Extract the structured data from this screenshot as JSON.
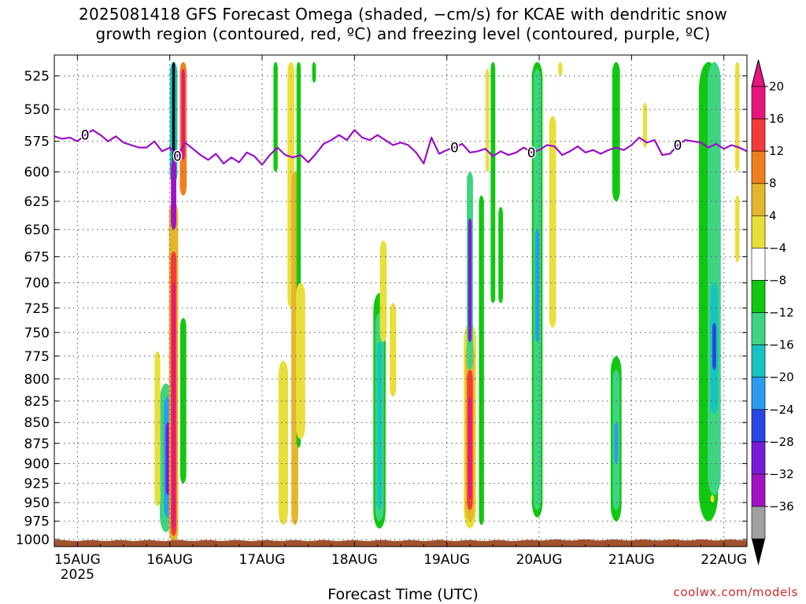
{
  "title": {
    "line1": "2025081418 GFS Forecast Omega (shaded, −cm/s) for KCAE with dendritic snow",
    "line2": "growth region (contoured, red, ºC) and freezing level (contoured, purple, ºC)"
  },
  "credit": "coolwx.com/models",
  "chart_data": {
    "type": "heatmap",
    "title": "2025081418 GFS Forecast Omega (shaded, −cm/s) for KCAE with dendritic snow growth region (contoured, red, ºC) and freezing level (contoured, purple, ºC)",
    "xlabel": "Forecast Time (UTC)",
    "ylabel": "",
    "x_ticks": [
      "15AUG",
      "16AUG",
      "17AUG",
      "18AUG",
      "19AUG",
      "20AUG",
      "21AUG",
      "22AUG"
    ],
    "x_tick_sublabel": "2025",
    "x_tick_hours": [
      0,
      24,
      48,
      72,
      96,
      120,
      144,
      168
    ],
    "xlim_hours": [
      -6,
      174
    ],
    "y_ticks": [
      525,
      550,
      575,
      600,
      625,
      650,
      675,
      700,
      725,
      750,
      775,
      800,
      825,
      850,
      875,
      900,
      925,
      950,
      975,
      1000
    ],
    "ylim": [
      510,
      1010
    ],
    "y_scale": "log",
    "grid": true,
    "colorbar": {
      "labels": [
        "20",
        "16",
        "12",
        "8",
        "4",
        "−4",
        "−8",
        "−12",
        "−16",
        "−20",
        "−24",
        "−28",
        "−32",
        "−36"
      ],
      "colors": [
        "#e8157e",
        "#f53a3a",
        "#f07e1e",
        "#e5b62b",
        "#e9df3a",
        "#ffffff",
        "#10c810",
        "#3dd482",
        "#17c2c2",
        "#2b9cf0",
        "#2a46e3",
        "#7a1ad9",
        "#a012c4",
        "#a0a0a0"
      ],
      "top_arrow_color": "#e8157e",
      "bottom_arrow_color": "#000000"
    },
    "freezing_level": {
      "label": "0",
      "color": "#9a0fc8",
      "hours": [
        -6,
        -4,
        -2,
        0,
        2,
        4,
        6,
        8,
        10,
        12,
        14,
        16,
        18,
        20,
        22,
        24,
        26,
        28,
        30,
        32,
        34,
        36,
        38,
        40,
        42,
        44,
        46,
        48,
        50,
        52,
        54,
        56,
        58,
        60,
        62,
        64,
        66,
        68,
        70,
        72,
        74,
        76,
        78,
        80,
        82,
        84,
        86,
        88,
        90,
        92,
        94,
        96,
        98,
        100,
        102,
        104,
        106,
        108,
        110,
        112,
        114,
        116,
        118,
        120,
        122,
        124,
        126,
        128,
        130,
        132,
        134,
        136,
        138,
        140,
        142,
        144,
        146,
        148,
        150,
        152,
        154,
        156,
        158,
        160,
        162,
        164,
        166,
        168,
        170,
        172,
        174
      ],
      "pressure": [
        571,
        573,
        572,
        575,
        570,
        566,
        570,
        575,
        571,
        576,
        578,
        580,
        580,
        575,
        583,
        580,
        587,
        576,
        581,
        586,
        590,
        585,
        593,
        588,
        592,
        584,
        587,
        594,
        586,
        580,
        586,
        588,
        586,
        592,
        585,
        577,
        574,
        570,
        574,
        566,
        572,
        574,
        570,
        574,
        578,
        576,
        578,
        584,
        593,
        572,
        585,
        582,
        580,
        577,
        584,
        583,
        581,
        587,
        583,
        586,
        584,
        580,
        584,
        582,
        578,
        579,
        586,
        583,
        579,
        584,
        582,
        585,
        582,
        580,
        582,
        578,
        572,
        576,
        574,
        586,
        585,
        578,
        574,
        575,
        576,
        580,
        577,
        581,
        578,
        580,
        583
      ]
    },
    "omega_features": [
      {
        "h": 23.0,
        "pt": 805,
        "pb": 990,
        "w": 3.2,
        "color": "#3dd482"
      },
      {
        "h": 23.5,
        "pt": 820,
        "pb": 970,
        "w": 2.0,
        "color": "#2b9cf0"
      },
      {
        "h": 23.5,
        "pt": 850,
        "pb": 940,
        "w": 1.1,
        "color": "#7a1ad9"
      },
      {
        "h": 20.8,
        "pt": 770,
        "pb": 955,
        "w": 1.5,
        "color": "#e9df3a"
      },
      {
        "h": 25.0,
        "pt": 625,
        "pb": 1005,
        "w": 2.4,
        "color": "#e5b62b"
      },
      {
        "h": 25.0,
        "pt": 670,
        "pb": 995,
        "w": 1.5,
        "color": "#f53a3a"
      },
      {
        "h": 25.0,
        "pt": 700,
        "pb": 985,
        "w": 0.9,
        "color": "#e8157e"
      },
      {
        "h": 27.5,
        "pt": 735,
        "pb": 925,
        "w": 1.6,
        "color": "#10c810"
      },
      {
        "h": 25.0,
        "pt": 515,
        "pb": 610,
        "w": 2.0,
        "color": "#17c2c2"
      },
      {
        "h": 25.0,
        "pt": 515,
        "pb": 600,
        "w": 0.7,
        "color": "#000000"
      },
      {
        "h": 25.0,
        "pt": 590,
        "pb": 650,
        "w": 1.4,
        "color": "#a012c4"
      },
      {
        "h": 27.5,
        "pt": 515,
        "pb": 620,
        "w": 1.8,
        "color": "#f07e1e"
      },
      {
        "h": 27.5,
        "pt": 520,
        "pb": 590,
        "w": 0.9,
        "color": "#e8157e"
      },
      {
        "h": 51.5,
        "pt": 515,
        "pb": 600,
        "w": 1.1,
        "color": "#10c810"
      },
      {
        "h": 55.5,
        "pt": 515,
        "pb": 725,
        "w": 1.8,
        "color": "#e9df3a"
      },
      {
        "h": 56.5,
        "pt": 600,
        "pb": 980,
        "w": 1.8,
        "color": "#e5b62b"
      },
      {
        "h": 57.5,
        "pt": 515,
        "pb": 880,
        "w": 1.1,
        "color": "#10c810"
      },
      {
        "h": 58.0,
        "pt": 700,
        "pb": 870,
        "w": 2.4,
        "color": "#e9df3a"
      },
      {
        "h": 61.5,
        "pt": 515,
        "pb": 530,
        "w": 1.0,
        "color": "#10c810"
      },
      {
        "h": 53.5,
        "pt": 780,
        "pb": 980,
        "w": 2.5,
        "color": "#e9df3a"
      },
      {
        "h": 78.5,
        "pt": 710,
        "pb": 985,
        "w": 3.2,
        "color": "#10c810"
      },
      {
        "h": 78.5,
        "pt": 730,
        "pb": 975,
        "w": 2.2,
        "color": "#3dd482"
      },
      {
        "h": 78.5,
        "pt": 760,
        "pb": 960,
        "w": 1.3,
        "color": "#17c2c2"
      },
      {
        "h": 79.5,
        "pt": 660,
        "pb": 760,
        "w": 1.8,
        "color": "#e9df3a"
      },
      {
        "h": 82.0,
        "pt": 720,
        "pb": 820,
        "w": 1.7,
        "color": "#e9df3a"
      },
      {
        "h": 102.0,
        "pt": 740,
        "pb": 985,
        "w": 3.2,
        "color": "#e9df3a"
      },
      {
        "h": 102.0,
        "pt": 760,
        "pb": 975,
        "w": 2.4,
        "color": "#e5b62b"
      },
      {
        "h": 102.0,
        "pt": 790,
        "pb": 960,
        "w": 1.5,
        "color": "#f53a3a"
      },
      {
        "h": 102.0,
        "pt": 820,
        "pb": 945,
        "w": 0.9,
        "color": "#e8157e"
      },
      {
        "h": 102.0,
        "pt": 600,
        "pb": 790,
        "w": 1.6,
        "color": "#3dd482"
      },
      {
        "h": 102.0,
        "pt": 640,
        "pb": 760,
        "w": 0.9,
        "color": "#7a1ad9"
      },
      {
        "h": 105.0,
        "pt": 620,
        "pb": 980,
        "w": 1.3,
        "color": "#10c810"
      },
      {
        "h": 106.5,
        "pt": 520,
        "pb": 600,
        "w": 0.9,
        "color": "#e9df3a"
      },
      {
        "h": 108.0,
        "pt": 515,
        "pb": 720,
        "w": 1.2,
        "color": "#10c810"
      },
      {
        "h": 110.0,
        "pt": 630,
        "pb": 720,
        "w": 1.2,
        "color": "#10c810"
      },
      {
        "h": 119.5,
        "pt": 515,
        "pb": 970,
        "w": 2.8,
        "color": "#10c810"
      },
      {
        "h": 119.5,
        "pt": 520,
        "pb": 960,
        "w": 1.9,
        "color": "#3dd482"
      },
      {
        "h": 119.5,
        "pt": 650,
        "pb": 760,
        "w": 1.1,
        "color": "#2b9cf0"
      },
      {
        "h": 123.5,
        "pt": 555,
        "pb": 745,
        "w": 1.8,
        "color": "#e9df3a"
      },
      {
        "h": 125.5,
        "pt": 515,
        "pb": 525,
        "w": 1.2,
        "color": "#e9df3a"
      },
      {
        "h": 140.0,
        "pt": 515,
        "pb": 625,
        "w": 2.0,
        "color": "#10c810"
      },
      {
        "h": 140.0,
        "pt": 775,
        "pb": 975,
        "w": 2.8,
        "color": "#10c810"
      },
      {
        "h": 140.0,
        "pt": 790,
        "pb": 960,
        "w": 1.8,
        "color": "#3dd482"
      },
      {
        "h": 140.0,
        "pt": 850,
        "pb": 900,
        "w": 1.0,
        "color": "#2b9cf0"
      },
      {
        "h": 147.5,
        "pt": 545,
        "pb": 580,
        "w": 1.1,
        "color": "#e9df3a"
      },
      {
        "h": 164.0,
        "pt": 515,
        "pb": 975,
        "w": 5.0,
        "color": "#10c810"
      },
      {
        "h": 165.5,
        "pt": 515,
        "pb": 940,
        "w": 3.4,
        "color": "#3dd482"
      },
      {
        "h": 165.5,
        "pt": 700,
        "pb": 840,
        "w": 2.0,
        "color": "#17c2c2"
      },
      {
        "h": 165.5,
        "pt": 740,
        "pb": 790,
        "w": 1.0,
        "color": "#2a46e3"
      },
      {
        "h": 171.5,
        "pt": 515,
        "pb": 600,
        "w": 1.1,
        "color": "#e9df3a"
      },
      {
        "h": 171.5,
        "pt": 620,
        "pb": 680,
        "w": 1.1,
        "color": "#e9df3a"
      },
      {
        "h": 165.0,
        "pt": 940,
        "pb": 950,
        "w": 1.0,
        "color": "#e9df3a"
      }
    ]
  }
}
